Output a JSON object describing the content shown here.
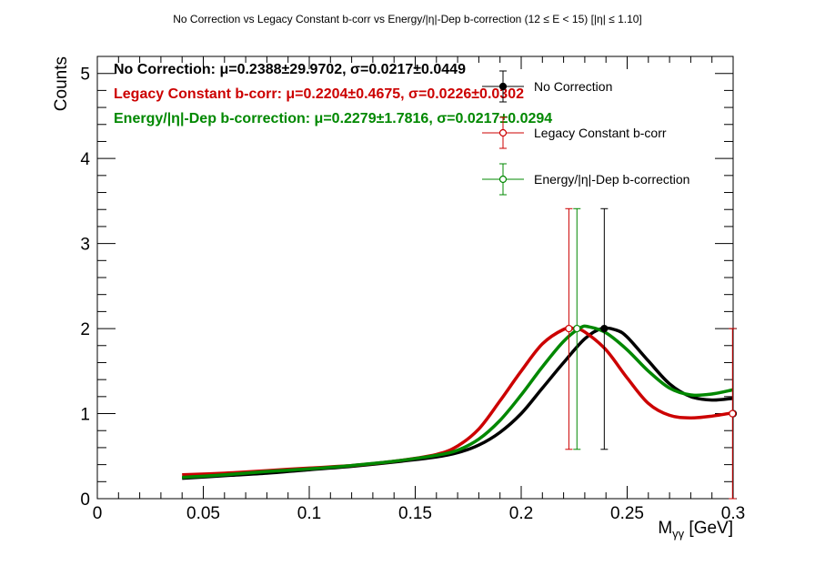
{
  "chart_data": {
    "type": "scatter",
    "title": "No Correction vs Legacy Constant b-corr vs Energy/|η|-Dep b-correction   (12 ≤ E < 15)   [|η| ≤ 1.10]",
    "xlabel": "M",
    "xlabel_sub": "γγ",
    "xlabel_unit": " [GeV]",
    "ylabel": "Counts",
    "xlim": [
      0,
      0.3
    ],
    "ylim": [
      0,
      5.2
    ],
    "x_ticks": [
      {
        "value": 0,
        "label": "0"
      },
      {
        "value": 0.05,
        "label": "0.05"
      },
      {
        "value": 0.1,
        "label": "0.1"
      },
      {
        "value": 0.15,
        "label": "0.15"
      },
      {
        "value": 0.2,
        "label": "0.2"
      },
      {
        "value": 0.25,
        "label": "0.25"
      },
      {
        "value": 0.3,
        "label": "0.3"
      }
    ],
    "y_ticks": [
      {
        "value": 0,
        "label": "0"
      },
      {
        "value": 1,
        "label": "1"
      },
      {
        "value": 2,
        "label": "2"
      },
      {
        "value": 3,
        "label": "3"
      },
      {
        "value": 4,
        "label": "4"
      },
      {
        "value": 5,
        "label": "5"
      }
    ],
    "grid": false,
    "legend_position": "top-right",
    "series": [
      {
        "name": "No Correction",
        "color": "#000000",
        "marker": "filled-circle",
        "stat_label": "No Correction:",
        "stat_value": "μ=0.2388±29.9702, σ=0.0217±0.0449",
        "points": [
          {
            "x": 0.2392,
            "y": 2.0,
            "err_low": 1.42,
            "err_high": 1.41
          },
          {
            "x": 0.3,
            "y": 1.0,
            "err_low": 1.0,
            "err_high": 1.0
          }
        ],
        "fit": [
          [
            0.04,
            0.24
          ],
          [
            0.06,
            0.27
          ],
          [
            0.08,
            0.3
          ],
          [
            0.1,
            0.34
          ],
          [
            0.12,
            0.38
          ],
          [
            0.14,
            0.43
          ],
          [
            0.16,
            0.49
          ],
          [
            0.17,
            0.54
          ],
          [
            0.18,
            0.63
          ],
          [
            0.19,
            0.78
          ],
          [
            0.2,
            1.0
          ],
          [
            0.21,
            1.3
          ],
          [
            0.22,
            1.6
          ],
          [
            0.23,
            1.88
          ],
          [
            0.238,
            2.0
          ],
          [
            0.245,
            1.98
          ],
          [
            0.25,
            1.9
          ],
          [
            0.26,
            1.62
          ],
          [
            0.27,
            1.35
          ],
          [
            0.28,
            1.2
          ],
          [
            0.29,
            1.16
          ],
          [
            0.3,
            1.18
          ]
        ]
      },
      {
        "name": "Legacy Constant b-corr",
        "color": "#cc0000",
        "marker": "open-circle",
        "stat_label": "Legacy Constant b-corr:",
        "stat_value": "μ=0.2204±0.4675, σ=0.0226±0.0302",
        "points": [
          {
            "x": 0.2225,
            "y": 2.0,
            "err_low": 1.42,
            "err_high": 1.41
          },
          {
            "x": 0.2997,
            "y": 1.0,
            "err_low": 1.0,
            "err_high": 1.0
          }
        ],
        "fit": [
          [
            0.04,
            0.28
          ],
          [
            0.06,
            0.3
          ],
          [
            0.08,
            0.33
          ],
          [
            0.1,
            0.36
          ],
          [
            0.12,
            0.39
          ],
          [
            0.14,
            0.44
          ],
          [
            0.16,
            0.52
          ],
          [
            0.17,
            0.62
          ],
          [
            0.18,
            0.82
          ],
          [
            0.19,
            1.15
          ],
          [
            0.2,
            1.5
          ],
          [
            0.21,
            1.82
          ],
          [
            0.22,
            1.99
          ],
          [
            0.225,
            2.0
          ],
          [
            0.23,
            1.96
          ],
          [
            0.24,
            1.75
          ],
          [
            0.25,
            1.42
          ],
          [
            0.26,
            1.12
          ],
          [
            0.27,
            0.98
          ],
          [
            0.28,
            0.95
          ],
          [
            0.29,
            0.97
          ],
          [
            0.3,
            1.01
          ]
        ]
      },
      {
        "name": "Energy/|η|-Dep b-correction",
        "color": "#008800",
        "marker": "open-circle",
        "stat_label": "Energy/|η|-Dep b-correction:",
        "stat_value": "μ=0.2279±1.7816, σ=0.0217±0.0294",
        "points": [
          {
            "x": 0.2263,
            "y": 2.0,
            "err_low": 1.42,
            "err_high": 1.41
          }
        ],
        "fit": [
          [
            0.04,
            0.25
          ],
          [
            0.06,
            0.28
          ],
          [
            0.08,
            0.32
          ],
          [
            0.1,
            0.35
          ],
          [
            0.12,
            0.39
          ],
          [
            0.14,
            0.44
          ],
          [
            0.16,
            0.51
          ],
          [
            0.17,
            0.57
          ],
          [
            0.18,
            0.7
          ],
          [
            0.19,
            0.92
          ],
          [
            0.2,
            1.22
          ],
          [
            0.21,
            1.55
          ],
          [
            0.22,
            1.85
          ],
          [
            0.228,
            2.01
          ],
          [
            0.232,
            2.02
          ],
          [
            0.24,
            1.95
          ],
          [
            0.25,
            1.75
          ],
          [
            0.26,
            1.5
          ],
          [
            0.27,
            1.3
          ],
          [
            0.28,
            1.22
          ],
          [
            0.29,
            1.23
          ],
          [
            0.3,
            1.28
          ]
        ]
      }
    ]
  }
}
